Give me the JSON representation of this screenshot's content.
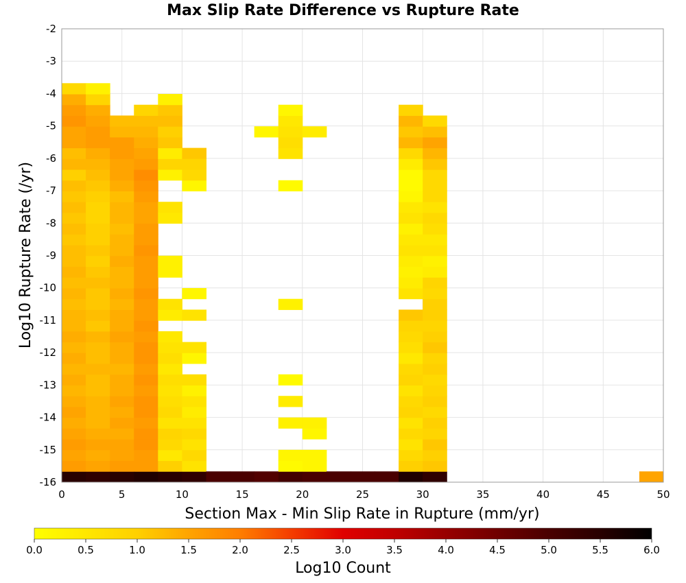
{
  "chart_data": {
    "type": "heatmap",
    "title": "Max Slip Rate Difference vs Rupture Rate",
    "xlabel": "Section Max - Min Slip Rate in Rupture (mm/yr)",
    "ylabel": "Log10 Rupture Rate (/yr)",
    "colorbar_label": "Log10 Count",
    "xlim": [
      0,
      50
    ],
    "ylim": [
      -16,
      -2
    ],
    "x_ticks": [
      "0",
      "5",
      "10",
      "15",
      "20",
      "25",
      "30",
      "35",
      "40",
      "45",
      "50"
    ],
    "y_ticks": [
      "-2",
      "-3",
      "-4",
      "-5",
      "-6",
      "-7",
      "-8",
      "-9",
      "-10",
      "-11",
      "-12",
      "-13",
      "-14",
      "-15",
      "-16"
    ],
    "color_ticks": [
      "0.0",
      "0.5",
      "1.0",
      "1.5",
      "2.0",
      "2.5",
      "3.0",
      "3.5",
      "4.0",
      "4.5",
      "5.0",
      "5.5",
      "6.0"
    ],
    "color_range": [
      0,
      6
    ],
    "grid": true,
    "bin_width_x": 2,
    "bin_height_y": 0.333,
    "columns": [
      {
        "x0": 0,
        "y0": -16,
        "values": [
          5.5,
          1.6,
          1.5,
          1.6,
          1.5,
          1.4,
          1.5,
          1.4,
          1.3,
          1.4,
          1.3,
          1.4,
          1.3,
          1.4,
          1.3,
          1.3,
          1.2,
          1.3,
          1.2,
          1.3,
          1.2,
          1.2,
          1.1,
          1.2,
          1.1,
          1.2,
          1.1,
          1.2,
          1.0,
          1.3,
          1.2,
          1.5,
          1.5,
          1.7,
          1.6,
          1.4,
          0.8
        ]
      },
      {
        "x0": 2,
        "y0": -16,
        "values": [
          5.4,
          1.5,
          1.4,
          1.5,
          1.4,
          1.3,
          1.3,
          1.3,
          1.2,
          1.2,
          1.3,
          1.2,
          1.2,
          1.3,
          1.1,
          1.2,
          1.1,
          1.1,
          1.2,
          1.1,
          1.0,
          1.1,
          1.0,
          1.0,
          0.9,
          0.9,
          1.0,
          1.1,
          1.2,
          1.3,
          1.4,
          1.6,
          1.6,
          1.5,
          1.4,
          0.9,
          0.3
        ]
      },
      {
        "x0": 4,
        "y0": -16,
        "values": [
          5.5,
          1.6,
          1.5,
          1.5,
          1.4,
          1.5,
          1.4,
          1.5,
          1.4,
          1.4,
          1.3,
          1.4,
          1.4,
          1.5,
          1.4,
          1.4,
          1.3,
          1.4,
          1.3,
          1.3,
          1.4,
          1.3,
          1.3,
          1.2,
          1.3,
          1.3,
          1.2,
          1.4,
          1.5,
          1.5,
          1.6,
          1.6,
          1.3,
          1.2
        ]
      },
      {
        "x0": 6,
        "y0": -16,
        "values": [
          5.6,
          1.6,
          1.6,
          1.7,
          1.7,
          1.6,
          1.7,
          1.7,
          1.6,
          1.7,
          1.6,
          1.7,
          1.7,
          1.6,
          1.7,
          1.6,
          1.6,
          1.7,
          1.6,
          1.6,
          1.6,
          1.7,
          1.6,
          1.6,
          1.5,
          1.5,
          1.6,
          1.7,
          1.8,
          1.6,
          1.5,
          1.4,
          1.3,
          1.2,
          0.9
        ]
      },
      {
        "x0": 8,
        "y0": -16,
        "values": [
          5.5,
          1.0,
          0.5,
          0.8,
          0.9,
          0.6,
          0.8,
          0.7,
          0.6,
          0.7,
          0.5,
          0.7,
          0.6,
          0.5,
          null,
          0.4,
          0.6,
          null,
          null,
          0.3,
          0.3,
          null,
          null,
          null,
          0.5,
          0.6,
          null,
          null,
          0.3,
          0.9,
          0.4,
          1.1,
          1.0,
          1.2,
          1.1,
          0.3
        ]
      },
      {
        "x0": 10,
        "y0": -16,
        "values": [
          5.4,
          0.6,
          0.8,
          0.6,
          0.8,
          0.6,
          0.4,
          0.6,
          0.3,
          0.7,
          null,
          0.2,
          0.6,
          null,
          null,
          0.6,
          null,
          0.2,
          null,
          null,
          null,
          null,
          null,
          null,
          null,
          null,
          null,
          0.2,
          0.8,
          0.9,
          1.1
        ]
      },
      {
        "x0": 12,
        "y0": -16,
        "values": [
          5.0
        ]
      },
      {
        "x0": 14,
        "y0": -16,
        "values": [
          5.0
        ]
      },
      {
        "x0": 16,
        "y0": -16,
        "values": [
          4.9,
          null,
          null,
          null,
          null,
          null,
          null,
          null,
          null,
          null,
          null,
          null,
          null,
          null,
          null,
          null,
          null,
          null,
          null,
          null,
          null,
          null,
          null,
          null,
          null,
          null,
          null,
          null,
          null,
          null,
          null,
          null,
          0.2
        ]
      },
      {
        "x0": 18,
        "y0": -16,
        "values": [
          5.1,
          0.1,
          0.2,
          null,
          null,
          0.3,
          null,
          0.4,
          null,
          0.1,
          null,
          null,
          null,
          null,
          null,
          null,
          0.3,
          null,
          null,
          null,
          null,
          null,
          null,
          null,
          null,
          null,
          null,
          0.1,
          null,
          null,
          0.6,
          0.7,
          0.6,
          0.5,
          0.2
        ]
      },
      {
        "x0": 20,
        "y0": -16,
        "values": [
          5.0,
          0.2,
          0.2,
          null,
          0.2,
          0.3,
          null,
          null,
          null,
          null,
          null,
          null,
          null,
          null,
          null,
          null,
          null,
          null,
          null,
          null,
          null,
          null,
          null,
          null,
          null,
          null,
          null,
          null,
          null,
          null,
          null,
          null,
          0.4
        ]
      },
      {
        "x0": 22,
        "y0": -16,
        "values": [
          5.0
        ]
      },
      {
        "x0": 24,
        "y0": -16,
        "values": [
          5.0
        ]
      },
      {
        "x0": 26,
        "y0": -16,
        "values": [
          5.0
        ]
      },
      {
        "x0": 28,
        "y0": -16,
        "values": [
          5.6,
          1.0,
          0.8,
          0.6,
          0.8,
          0.6,
          0.9,
          0.8,
          0.6,
          0.9,
          0.8,
          0.5,
          0.7,
          0.8,
          0.9,
          1.1,
          null,
          0.6,
          0.4,
          0.3,
          0.4,
          0.6,
          0.5,
          0.3,
          0.6,
          0.5,
          0.2,
          0.1,
          0.1,
          0.4,
          0.8,
          1.3,
          1.1,
          1.3,
          0.9
        ]
      },
      {
        "x0": 30,
        "y0": -16,
        "values": [
          5.4,
          1.1,
          1.0,
          1.1,
          0.9,
          1.0,
          0.8,
          1.0,
          0.9,
          0.8,
          1.0,
          0.9,
          1.1,
          1.0,
          0.9,
          1.0,
          1.0,
          0.8,
          0.9,
          0.4,
          0.3,
          0.6,
          0.5,
          0.7,
          0.8,
          0.6,
          0.8,
          0.8,
          0.8,
          1.1,
          1.3,
          1.5,
          1.2,
          0.8
        ]
      },
      {
        "x0": 48,
        "y0": -16,
        "values": [
          1.5
        ]
      }
    ]
  }
}
